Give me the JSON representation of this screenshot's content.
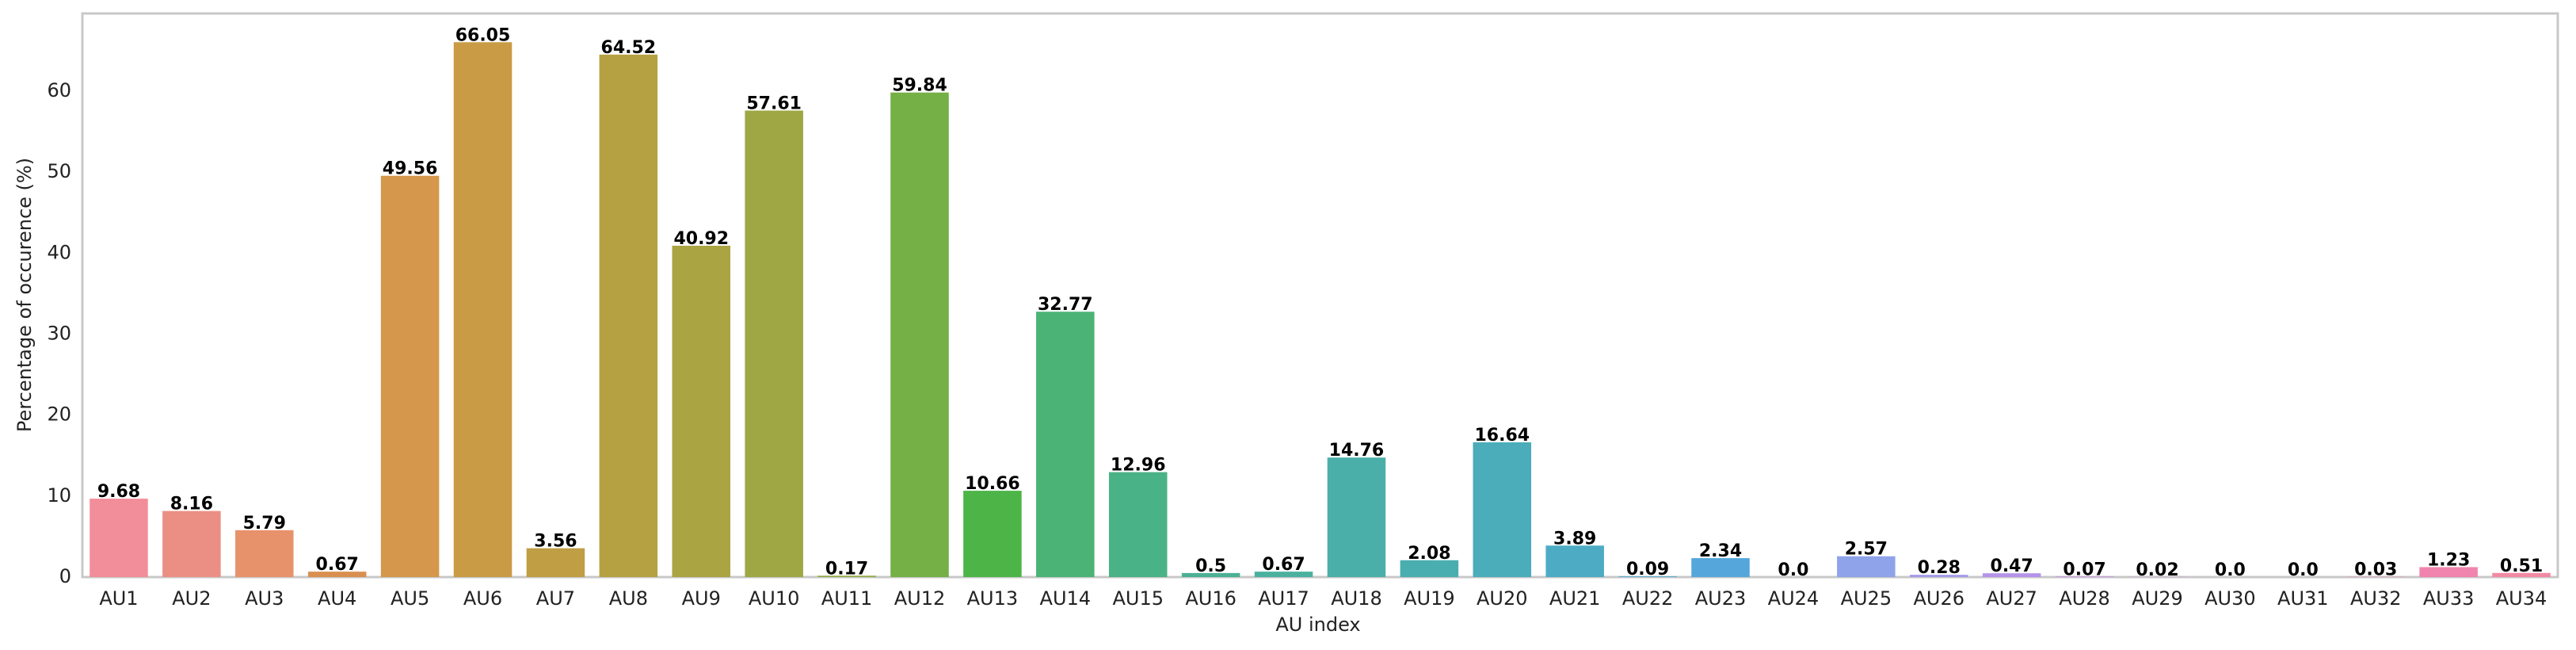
{
  "chart_data": {
    "type": "bar",
    "x_label": "AU index",
    "y_label": "Percentage of occurence (%)",
    "categories": [
      "AU1",
      "AU2",
      "AU3",
      "AU4",
      "AU5",
      "AU6",
      "AU7",
      "AU8",
      "AU9",
      "AU10",
      "AU11",
      "AU12",
      "AU13",
      "AU14",
      "AU15",
      "AU16",
      "AU17",
      "AU18",
      "AU19",
      "AU20",
      "AU21",
      "AU22",
      "AU23",
      "AU24",
      "AU25",
      "AU26",
      "AU27",
      "AU28",
      "AU29",
      "AU30",
      "AU31",
      "AU32",
      "AU33",
      "AU34"
    ],
    "values": [
      9.68,
      8.16,
      5.79,
      0.67,
      49.56,
      66.05,
      3.56,
      64.52,
      40.92,
      57.61,
      0.17,
      59.84,
      10.66,
      32.77,
      12.96,
      0.5,
      0.67,
      14.76,
      2.08,
      16.64,
      3.89,
      0.09,
      2.34,
      0,
      2.57,
      0.28,
      0.47,
      0.07,
      0.02,
      0,
      0,
      0.03,
      1.23,
      0.51
    ],
    "value_labels": [
      "9.68",
      "8.16",
      "5.79",
      "0.67",
      "49.56",
      "66.05",
      "3.56",
      "64.52",
      "40.92",
      "57.61",
      "0.17",
      "59.84",
      "10.66",
      "32.77",
      "12.96",
      "0.5",
      "0.67",
      "14.76",
      "2.08",
      "16.64",
      "3.89",
      "0.09",
      "2.34",
      "0.0",
      "2.57",
      "0.28",
      "0.47",
      "0.07",
      "0.02",
      "0.0",
      "0.0",
      "0.03",
      "1.23",
      "0.51"
    ],
    "colors": [
      "#f28e99",
      "#eb8f84",
      "#e8926b",
      "#d98f4e",
      "#d4974c",
      "#c99b45",
      "#bf9e44",
      "#b5a142",
      "#aaa443",
      "#9ea744",
      "#8fab44",
      "#74b045",
      "#4db548",
      "#4bb375",
      "#4ab287",
      "#4ab194",
      "#4ab09f",
      "#4aafa8",
      "#4aaeb0",
      "#4badb9",
      "#4dacc3",
      "#51aad0",
      "#55a7db",
      "#6ba3e4",
      "#8fa3ea",
      "#a29aea",
      "#b493ea",
      "#c58ce8",
      "#d585e3",
      "#e07fd9",
      "#e87ecb",
      "#ee80bc",
      "#f084ae",
      "#f289a3"
    ],
    "ylim": [
      0,
      69.6
    ],
    "yticks": [
      0,
      10,
      20,
      30,
      40,
      50,
      60
    ],
    "grid": false
  }
}
